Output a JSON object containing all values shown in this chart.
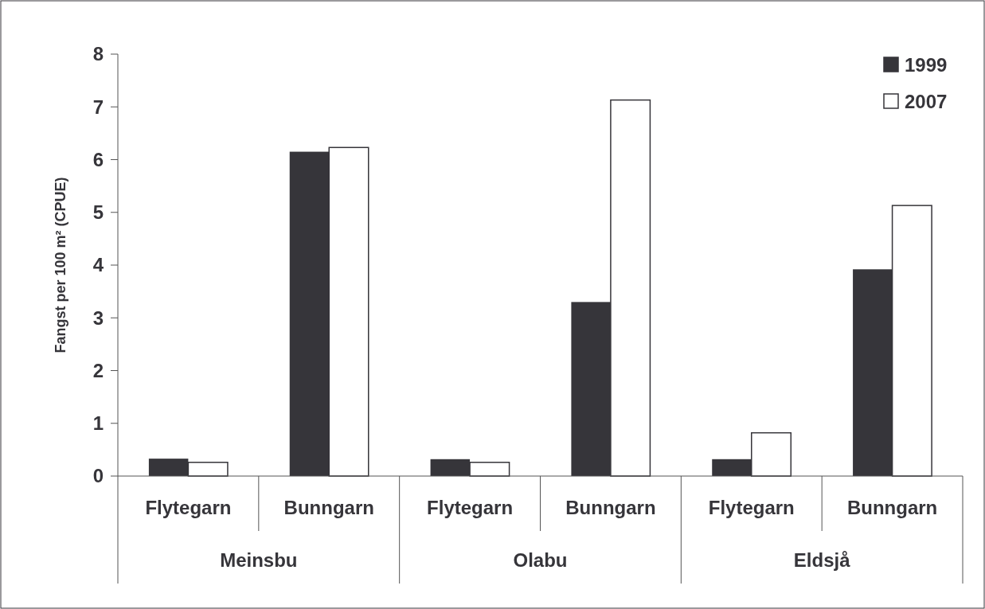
{
  "chart_data": {
    "type": "bar",
    "ylabel": "Fangst per 100 m²  (CPUE)",
    "categories": [
      "Flytegarn",
      "Bunngarn",
      "Flytegarn",
      "Bunngarn",
      "Flytegarn",
      "Bunngarn"
    ],
    "annotations": [
      "Meinsbu",
      "Olabu",
      "Eldsjå"
    ],
    "series": [
      {
        "name": "1999",
        "color": "#36353a",
        "values": [
          0.33,
          6.15,
          0.32,
          3.3,
          0.32,
          3.92
        ]
      },
      {
        "name": "2007",
        "color": "#ffffff",
        "values": [
          0.26,
          6.23,
          0.26,
          7.13,
          0.82,
          5.13
        ]
      }
    ],
    "ylim": [
      0,
      8
    ],
    "yticks": [
      0,
      1,
      2,
      3,
      4,
      5,
      6,
      7,
      8
    ],
    "legend": "top right"
  }
}
